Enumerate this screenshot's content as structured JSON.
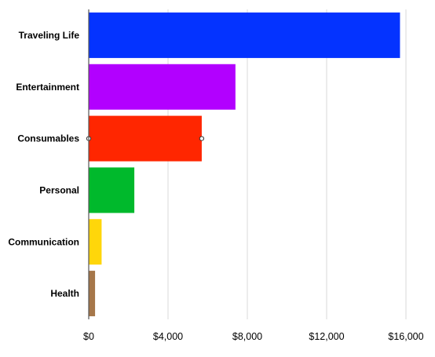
{
  "chart_data": {
    "type": "bar",
    "orientation": "horizontal",
    "categories": [
      "Traveling Life",
      "Entertainment",
      "Consumables",
      "Personal",
      "Communication",
      "Health"
    ],
    "values": [
      15700,
      7400,
      5700,
      2300,
      650,
      320
    ],
    "colors": [
      "#0433ff",
      "#b200ff",
      "#ff2600",
      "#00b92c",
      "#ffd60a",
      "#a6774a"
    ],
    "xlim": [
      0,
      17000
    ],
    "xticks": [
      0,
      4000,
      8000,
      12000,
      16000
    ],
    "xtick_labels": [
      "$0",
      "$4,000",
      "$8,000",
      "$12,000",
      "$16,000"
    ],
    "grid": true,
    "legend": "none",
    "selected_category": "Consumables"
  }
}
